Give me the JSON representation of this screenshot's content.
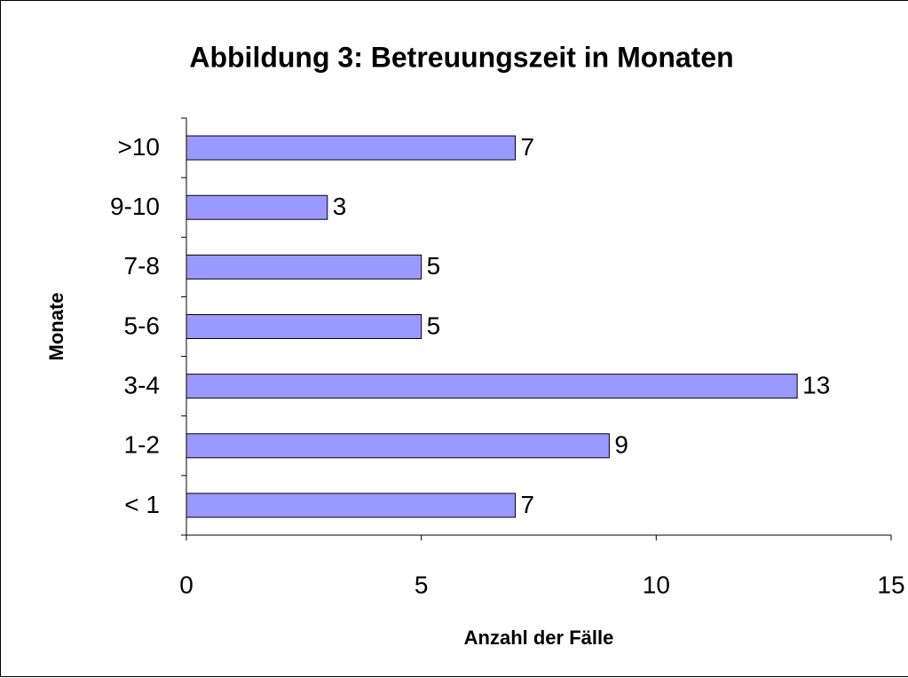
{
  "chart_data": {
    "type": "bar",
    "orientation": "horizontal",
    "title": "Abbildung 3: Betreuungszeit in Monaten",
    "x_label": "Anzahl der Fälle",
    "y_label": "Monate",
    "categories": [
      "< 1",
      "1-2",
      "3-4",
      "5-6",
      "7-8",
      "9-10",
      ">10"
    ],
    "values": [
      7,
      9,
      13,
      5,
      5,
      3,
      7
    ],
    "color": "#9999ff",
    "xlim": [
      0,
      15
    ],
    "xticks": [
      0,
      5,
      10,
      15
    ],
    "grid": false
  }
}
